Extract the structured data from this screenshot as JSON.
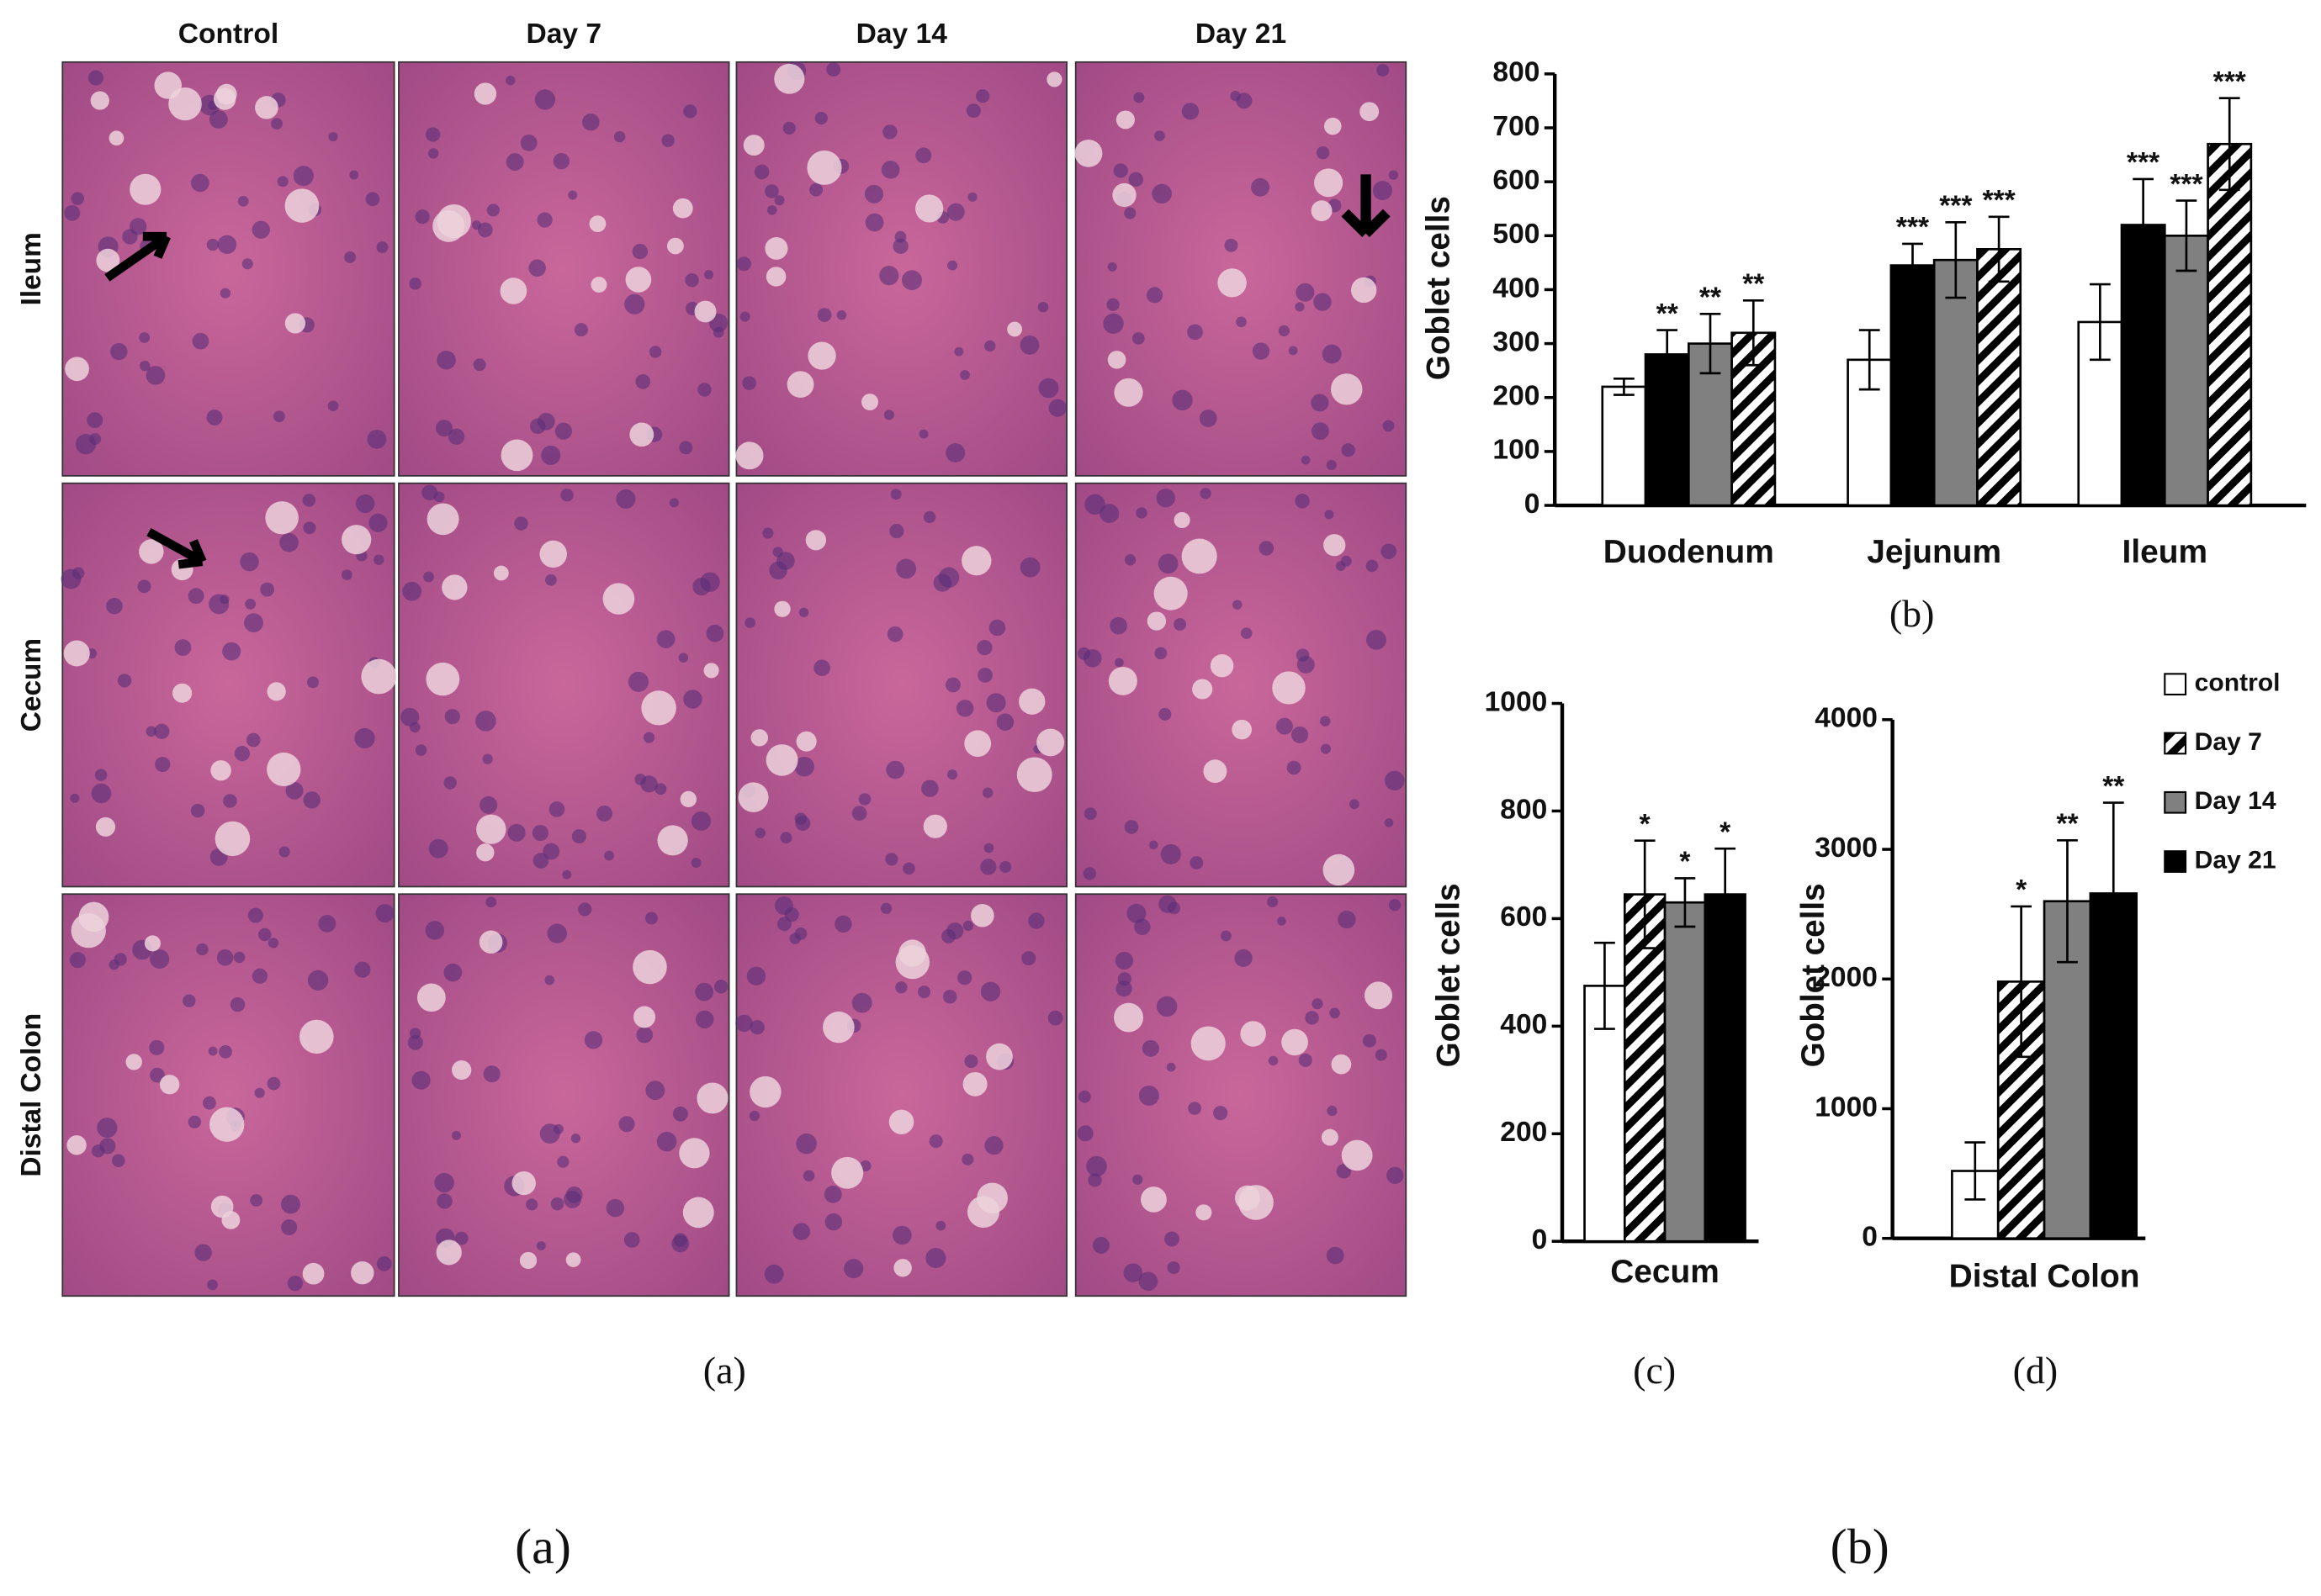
{
  "figure": {
    "micrographs": {
      "columns": [
        "Control",
        "Day 7",
        "Day 14",
        "Day 21"
      ],
      "rows": [
        "Ileum",
        "Cecum",
        "Distal Colon"
      ],
      "caption": "(a)"
    },
    "panel_labels": [
      "(a)",
      "(b)"
    ]
  },
  "chart_data": [
    {
      "type": "bar",
      "caption": "(b)",
      "y_label": "Goblet cells",
      "categories": [
        "Duodenum",
        "Jejunum",
        "Ileum"
      ],
      "series": [
        {
          "color": "#ffffff",
          "values": [
            220,
            270,
            340
          ],
          "errors": [
            15,
            55,
            70
          ],
          "significance": [
            null,
            null,
            null
          ]
        },
        {
          "color": "#000000",
          "values": [
            280,
            445,
            520
          ],
          "errors": [
            45,
            40,
            85
          ],
          "significance": [
            "**",
            "***",
            "***"
          ]
        },
        {
          "color": "#808080",
          "values": [
            300,
            455,
            500
          ],
          "errors": [
            55,
            70,
            65
          ],
          "significance": [
            "**",
            "***",
            "***"
          ]
        },
        {
          "color": "#ffffff",
          "pattern": "hatch",
          "values": [
            320,
            475,
            670
          ],
          "errors": [
            60,
            60,
            85
          ],
          "significance": [
            "**",
            "***",
            "***"
          ]
        }
      ],
      "ylim": [
        0,
        800
      ],
      "yticks": [
        0,
        100,
        200,
        300,
        400,
        500,
        600,
        700,
        800
      ]
    },
    {
      "type": "bar",
      "caption": "(c)",
      "y_label": "Goblet cells",
      "categories": [
        "Cecum"
      ],
      "series": [
        {
          "color": "#ffffff",
          "values": [
            475
          ],
          "errors": [
            80
          ],
          "significance": [
            null
          ]
        },
        {
          "color": "#ffffff",
          "pattern": "hatch",
          "values": [
            645
          ],
          "errors": [
            100
          ],
          "significance": [
            "*"
          ]
        },
        {
          "color": "#808080",
          "values": [
            630
          ],
          "errors": [
            45
          ],
          "significance": [
            "*"
          ]
        },
        {
          "color": "#000000",
          "values": [
            645
          ],
          "errors": [
            85
          ],
          "significance": [
            "*"
          ]
        }
      ],
      "ylim": [
        0,
        1000
      ],
      "yticks": [
        0,
        200,
        400,
        600,
        800,
        1000
      ]
    },
    {
      "type": "bar",
      "caption": "(d)",
      "y_label": "Goblet cells",
      "categories": [
        "Distal Colon"
      ],
      "series": [
        {
          "name": "control",
          "color": "#ffffff",
          "values": [
            520
          ],
          "errors": [
            220
          ],
          "significance": [
            null
          ]
        },
        {
          "name": "Day 7",
          "color": "#ffffff",
          "pattern": "hatch",
          "values": [
            1980
          ],
          "errors": [
            580
          ],
          "significance": [
            "*"
          ]
        },
        {
          "name": "Day 14",
          "color": "#808080",
          "values": [
            2600
          ],
          "errors": [
            470
          ],
          "significance": [
            "**"
          ]
        },
        {
          "name": "Day 21",
          "color": "#000000",
          "values": [
            2660
          ],
          "errors": [
            700
          ],
          "significance": [
            "**"
          ]
        }
      ],
      "ylim": [
        0,
        4000
      ],
      "yticks": [
        0,
        1000,
        2000,
        3000,
        4000
      ]
    }
  ]
}
